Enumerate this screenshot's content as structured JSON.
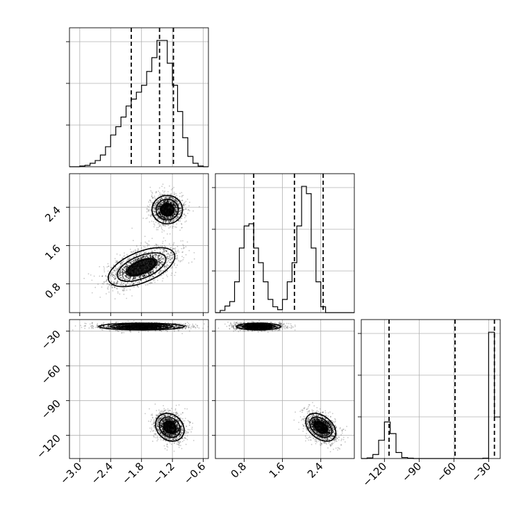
{
  "chart_data": {
    "type": "corner",
    "grid": true,
    "parameters": [
      {
        "range": [
          -3.2,
          -0.5
        ],
        "ticks": [
          -3.0,
          -2.4,
          -1.8,
          -1.2,
          -0.6
        ],
        "tick_labels": [
          "−3.0",
          "−2.4",
          "−1.8",
          "−1.2",
          "−0.6"
        ],
        "quantiles": [
          -2.0,
          -1.45,
          -1.18
        ]
      },
      {
        "range": [
          0.2,
          3.1
        ],
        "ticks": [
          0.8,
          1.6,
          2.4
        ],
        "tick_labels": [
          "0.8",
          "1.6",
          "2.4"
        ],
        "quantiles": [
          1.0,
          1.85,
          2.45
        ]
      },
      {
        "range": [
          -140,
          -20
        ],
        "ticks": [
          -120,
          -90,
          -60,
          -30
        ],
        "tick_labels": [
          "−120",
          "−90",
          "−60",
          "−30"
        ],
        "quantiles": [
          -116,
          -59,
          -25
        ]
      }
    ],
    "histograms": [
      {
        "parameter": 0,
        "edges": [
          -3.2,
          -3.0,
          -2.9,
          -2.8,
          -2.7,
          -2.6,
          -2.5,
          -2.4,
          -2.3,
          -2.2,
          -2.1,
          -2.0,
          -1.9,
          -1.8,
          -1.7,
          -1.6,
          -1.5,
          -1.4,
          -1.3,
          -1.2,
          -1.1,
          -1.0,
          -0.9,
          -0.8,
          -0.7,
          -0.6,
          -0.5
        ],
        "counts": [
          0,
          1,
          2,
          5,
          9,
          17,
          29,
          46,
          58,
          72,
          88,
          98,
          108,
          118,
          138,
          158,
          183,
          183,
          150,
          118,
          80,
          42,
          15,
          5,
          1,
          0
        ]
      },
      {
        "parameter": 1,
        "edges": [
          0.2,
          0.3,
          0.4,
          0.5,
          0.6,
          0.7,
          0.8,
          0.9,
          1.0,
          1.1,
          1.2,
          1.3,
          1.4,
          1.5,
          1.6,
          1.7,
          1.8,
          1.9,
          2.0,
          2.1,
          2.2,
          2.3,
          2.4,
          2.5,
          2.6,
          2.7,
          2.8,
          2.9,
          3.0,
          3.1
        ],
        "counts": [
          0,
          3,
          9,
          15,
          42,
          88,
          118,
          121,
          88,
          68,
          42,
          18,
          8,
          4,
          18,
          42,
          68,
          118,
          172,
          162,
          88,
          42,
          8,
          0,
          0,
          0,
          0,
          0,
          0
        ]
      },
      {
        "parameter": 2,
        "edges": [
          -140,
          -135,
          -130,
          -125,
          -120,
          -115,
          -110,
          -105,
          -100,
          -95,
          -90,
          -85,
          -80,
          -75,
          -70,
          -65,
          -60,
          -55,
          -50,
          -45,
          -40,
          -35,
          -30,
          -25,
          -20
        ],
        "counts": [
          0,
          2,
          12,
          55,
          110,
          75,
          18,
          3,
          1,
          0,
          0,
          0,
          0,
          0,
          0,
          0,
          0,
          0,
          0,
          0,
          0,
          1,
          380,
          125
        ]
      }
    ],
    "pair_panels": [
      {
        "x_parameter": 0,
        "y_parameter": 1,
        "modes": [
          {
            "center": [
              -1.3,
              2.35
            ],
            "sd": [
              0.16,
              0.16
            ],
            "corr": 0
          },
          {
            "center": [
              -1.8,
              1.15
            ],
            "sd": [
              0.35,
              0.22
            ],
            "corr": 0.55
          }
        ]
      },
      {
        "x_parameter": 0,
        "y_parameter": 2,
        "modes": [
          {
            "center": [
              -1.8,
              -26
            ],
            "sd": [
              0.45,
              1.6
            ],
            "corr": 0
          },
          {
            "center": [
              -1.25,
              -113
            ],
            "sd": [
              0.15,
              6.5
            ],
            "corr": -0.2
          }
        ]
      },
      {
        "x_parameter": 1,
        "y_parameter": 2,
        "modes": [
          {
            "center": [
              1.1,
              -26
            ],
            "sd": [
              0.25,
              1.6
            ],
            "corr": 0
          },
          {
            "center": [
              2.4,
              -113
            ],
            "sd": [
              0.17,
              6.5
            ],
            "corr": -0.4
          }
        ]
      }
    ]
  }
}
